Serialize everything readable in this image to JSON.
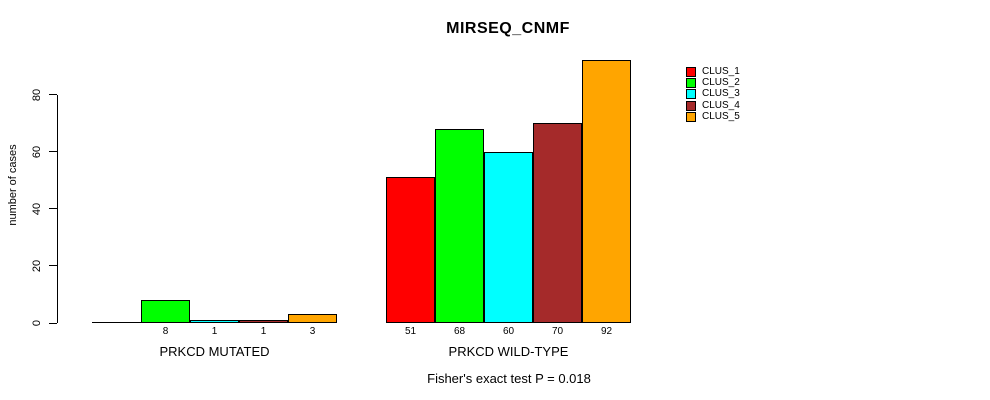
{
  "title": "MIRSEQ_CNMF",
  "chart_data": {
    "type": "bar",
    "title": "MIRSEQ_CNMF",
    "xlabel": "",
    "ylabel": "number of cases",
    "groups": [
      "PRKCD MUTATED",
      "PRKCD WILD-TYPE"
    ],
    "yticks": [
      0,
      20,
      40,
      60,
      80
    ],
    "ylim": [
      0,
      92
    ],
    "grid": false,
    "legend_position": "top-right",
    "legend_entries": [
      "CLUS_1",
      "CLUS_2",
      "CLUS_3",
      "CLUS_4",
      "CLUS_5"
    ],
    "series": [
      {
        "name": "CLUS_1",
        "color": "#FF0000",
        "values": [
          0,
          51
        ]
      },
      {
        "name": "CLUS_2",
        "color": "#00FF00",
        "values": [
          8,
          68
        ]
      },
      {
        "name": "CLUS_3",
        "color": "#00FFFF",
        "values": [
          1,
          60
        ]
      },
      {
        "name": "CLUS_4",
        "color": "#A52A2A",
        "values": [
          1,
          70
        ]
      },
      {
        "name": "CLUS_5",
        "color": "#FFA500",
        "values": [
          3,
          92
        ]
      }
    ],
    "bar_value_labels": [
      [
        "",
        "8",
        "1",
        "1",
        "3"
      ],
      [
        "51",
        "68",
        "60",
        "70",
        "92"
      ]
    ],
    "footnote": "Fisher's exact test P = 0.018",
    "colors": {
      "axis": "#000000",
      "text": "#000000",
      "background": "#FFFFFF"
    }
  }
}
